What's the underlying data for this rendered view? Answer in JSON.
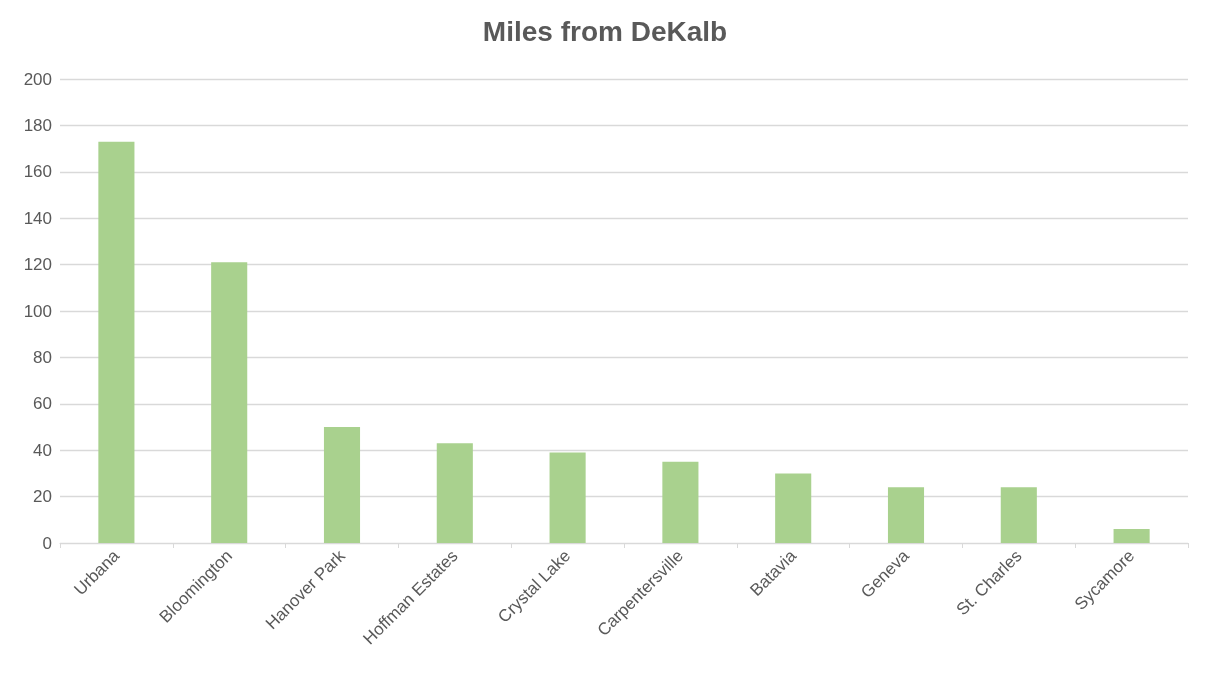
{
  "chart_data": {
    "type": "bar",
    "title": "Miles from DeKalb",
    "categories": [
      "Urbana",
      "Bloomington",
      "Hanover Park",
      "Hoffman Estates",
      "Crystal Lake",
      "Carpentersville",
      "Batavia",
      "Geneva",
      "St. Charles",
      "Sycamore"
    ],
    "values": [
      173,
      121,
      50,
      43,
      39,
      35,
      30,
      24,
      24,
      6
    ],
    "color": "#a9d18e",
    "ylim": [
      0,
      200
    ],
    "yticks": [
      0,
      20,
      40,
      60,
      80,
      100,
      120,
      140,
      160,
      180,
      200
    ],
    "grid": "y"
  }
}
